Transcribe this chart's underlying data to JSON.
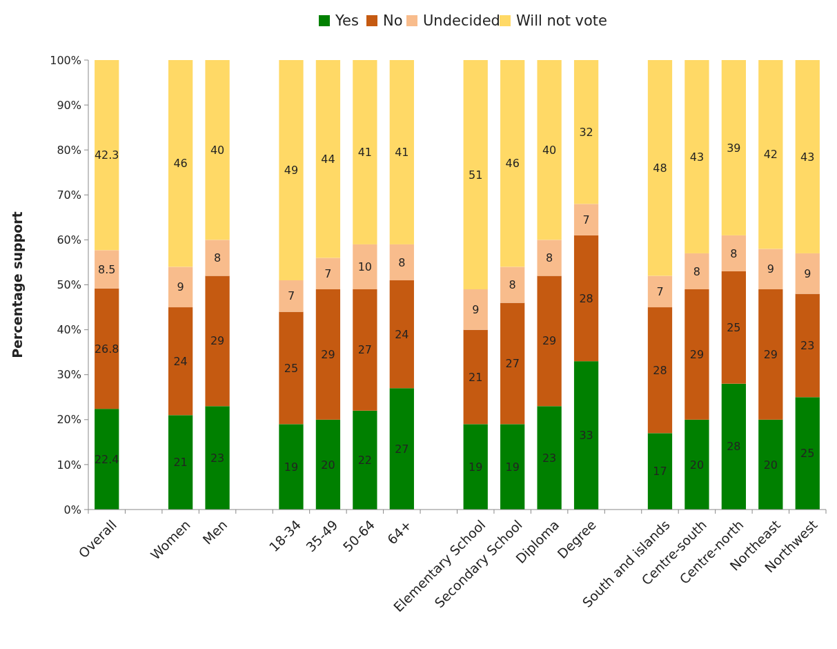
{
  "chart_data": {
    "type": "bar",
    "stacked": true,
    "ylabel": "Percentage support",
    "categories": [
      "Overall",
      null,
      "Women",
      "Men",
      null,
      "18-34",
      "35-49",
      "50-64",
      "64+",
      null,
      "Elementary School",
      "Secondary School",
      "Diploma",
      "Degree",
      null,
      "South and islands",
      "Centre-south",
      "Centre-north",
      "Northeast",
      "Northwest"
    ],
    "series": [
      {
        "name": "Yes",
        "color": "#008000",
        "values": [
          22.4,
          null,
          21,
          23,
          null,
          19,
          20,
          22,
          27,
          null,
          19,
          19,
          23,
          33,
          null,
          17,
          20,
          28,
          20,
          25
        ]
      },
      {
        "name": "No",
        "color": "#c55a11",
        "values": [
          26.8,
          null,
          24,
          29,
          null,
          25,
          29,
          27,
          24,
          null,
          21,
          27,
          29,
          28,
          null,
          28,
          29,
          25,
          29,
          23
        ]
      },
      {
        "name": "Undecided",
        "color": "#f8bc8c",
        "values": [
          8.5,
          null,
          9,
          8,
          null,
          7,
          7,
          10,
          8,
          null,
          9,
          8,
          8,
          7,
          null,
          7,
          8,
          8,
          9,
          9
        ]
      },
      {
        "name": "Will not vote",
        "color": "#ffd966",
        "values": [
          42.3,
          null,
          46,
          40,
          null,
          49,
          44,
          41,
          41,
          null,
          51,
          46,
          40,
          32,
          null,
          48,
          43,
          39,
          42,
          43
        ]
      }
    ],
    "ylim": [
      0,
      100
    ],
    "yticks": [
      {
        "value": 0,
        "label": "0%"
      },
      {
        "value": 10,
        "label": "10%"
      },
      {
        "value": 20,
        "label": "20%"
      },
      {
        "value": 30,
        "label": "30%"
      },
      {
        "value": 40,
        "label": "40%"
      },
      {
        "value": 50,
        "label": "50%"
      },
      {
        "value": 60,
        "label": "60%"
      },
      {
        "value": 70,
        "label": "70%"
      },
      {
        "value": 80,
        "label": "80%"
      },
      {
        "value": 90,
        "label": "90%"
      },
      {
        "value": 100,
        "label": "100%"
      }
    ],
    "grid": false,
    "legend": "top",
    "data_labels": true
  }
}
